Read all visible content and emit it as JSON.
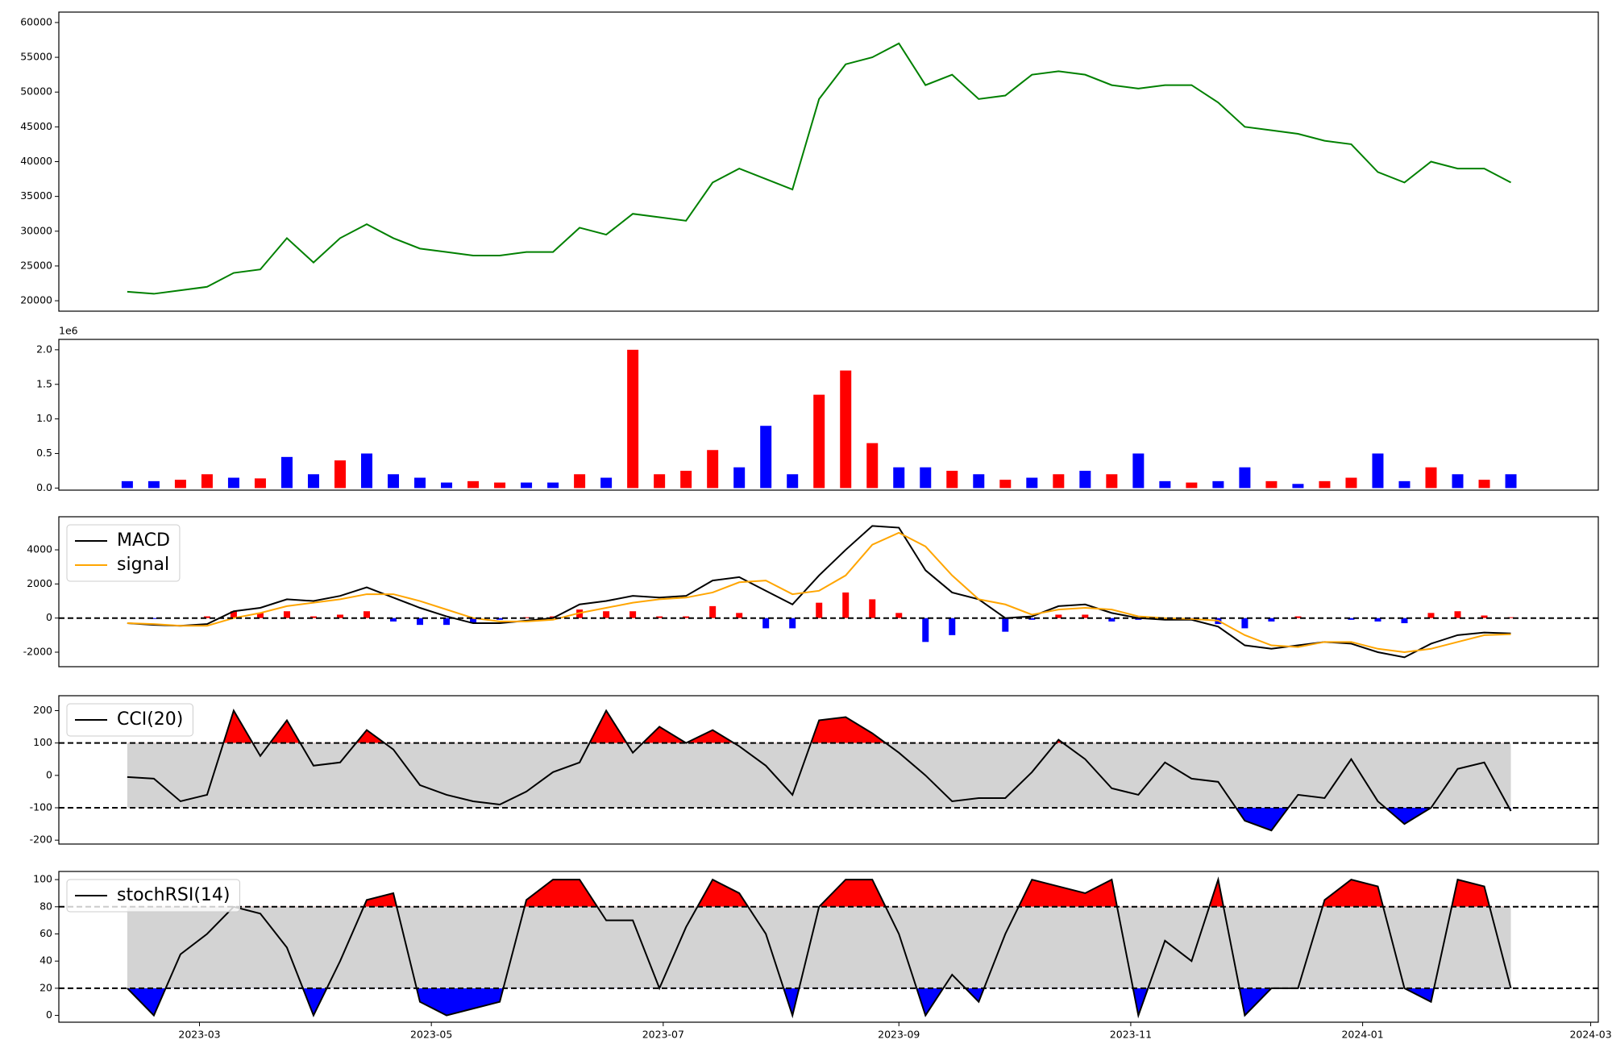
{
  "chart_data": [
    {
      "type": "line",
      "x": [
        -19,
        -12,
        -5,
        2,
        9,
        16,
        23,
        30,
        37,
        44,
        51,
        58,
        65,
        72,
        79,
        86,
        93,
        100,
        107,
        114,
        121,
        128,
        135,
        142,
        149,
        156,
        163,
        170,
        177,
        184,
        191,
        198,
        205,
        212,
        219,
        226,
        233,
        240,
        247,
        254,
        261,
        268,
        275,
        282,
        289,
        296,
        303,
        310,
        317,
        324,
        331,
        338,
        345
      ],
      "series": [
        {
          "color": "#008000",
          "values": [
            21300,
            21000,
            21500,
            22000,
            24000,
            24500,
            29000,
            25500,
            29000,
            31000,
            29000,
            27500,
            27000,
            26500,
            26500,
            27000,
            27000,
            30500,
            29500,
            32500,
            32000,
            31500,
            37000,
            39000,
            37500,
            36000,
            49000,
            54000,
            55000,
            57000,
            51000,
            52500,
            49000,
            49500,
            52500,
            53000,
            52500,
            51000,
            50500,
            51000,
            51000,
            48500,
            45000,
            44500,
            44000,
            43000,
            42500,
            38500,
            37000,
            40000,
            39000,
            39000,
            37000
          ]
        }
      ],
      "xlim": [
        -37,
        368
      ],
      "ylim": [
        18500,
        61500
      ],
      "yticks": [
        20000,
        25000,
        30000,
        35000,
        40000,
        45000,
        50000,
        55000,
        60000
      ]
    },
    {
      "type": "bar",
      "x": [
        -19,
        -12,
        -5,
        2,
        9,
        16,
        23,
        30,
        37,
        44,
        51,
        58,
        65,
        72,
        79,
        86,
        93,
        100,
        107,
        114,
        121,
        128,
        135,
        142,
        149,
        156,
        163,
        170,
        177,
        184,
        191,
        198,
        205,
        212,
        219,
        226,
        233,
        240,
        247,
        254,
        261,
        268,
        275,
        282,
        289,
        296,
        303,
        310,
        317,
        324,
        331,
        338,
        345
      ],
      "values": [
        0.1,
        0.1,
        0.12,
        0.2,
        0.15,
        0.14,
        0.45,
        0.2,
        0.4,
        0.5,
        0.2,
        0.15,
        0.08,
        0.1,
        0.08,
        0.08,
        0.08,
        0.2,
        0.15,
        2.0,
        0.2,
        0.25,
        0.55,
        0.3,
        0.9,
        0.2,
        1.35,
        1.7,
        0.65,
        0.3,
        0.3,
        0.25,
        0.2,
        0.12,
        0.15,
        0.2,
        0.25,
        0.2,
        0.5,
        0.1,
        0.08,
        0.1,
        0.3,
        0.1,
        0.06,
        0.1,
        0.15,
        0.5,
        0.1,
        0.3,
        0.2,
        0.12,
        0.2
      ],
      "colors": [
        "blue",
        "blue",
        "red",
        "red",
        "blue",
        "red",
        "blue",
        "blue",
        "red",
        "blue",
        "blue",
        "blue",
        "blue",
        "red",
        "red",
        "blue",
        "blue",
        "red",
        "blue",
        "red",
        "red",
        "red",
        "red",
        "blue",
        "blue",
        "blue",
        "red",
        "red",
        "red",
        "blue",
        "blue",
        "red",
        "blue",
        "red",
        "blue",
        "red",
        "blue",
        "red",
        "blue",
        "blue",
        "red",
        "blue",
        "blue",
        "red",
        "blue",
        "red",
        "red",
        "blue",
        "blue",
        "red",
        "blue",
        "red",
        "blue"
      ],
      "offset_label": "1e6",
      "xlim": [
        -37,
        368
      ],
      "ylim": [
        -0.03,
        2.15
      ],
      "yticks": [
        {
          "value": 0,
          "label": "0.0"
        },
        0.5,
        {
          "value": 1,
          "label": "1.0"
        },
        1.5,
        {
          "value": 2,
          "label": "2.0"
        }
      ]
    },
    {
      "type": "line",
      "x": [
        -19,
        -12,
        -5,
        2,
        9,
        16,
        23,
        30,
        37,
        44,
        51,
        58,
        65,
        72,
        79,
        86,
        93,
        100,
        107,
        114,
        121,
        128,
        135,
        142,
        149,
        156,
        163,
        170,
        177,
        184,
        191,
        198,
        205,
        212,
        219,
        226,
        233,
        240,
        247,
        254,
        261,
        268,
        275,
        282,
        289,
        296,
        303,
        310,
        317,
        324,
        331,
        338,
        345
      ],
      "series": [
        {
          "name": "MACD",
          "color": "#000000",
          "values": [
            -300,
            -400,
            -450,
            -350,
            400,
            600,
            1100,
            1000,
            1300,
            1800,
            1200,
            600,
            100,
            -300,
            -300,
            -150,
            0,
            800,
            1000,
            1300,
            1200,
            1300,
            2200,
            2400,
            1600,
            800,
            2500,
            4000,
            5400,
            5300,
            2800,
            1500,
            1100,
            0,
            100,
            700,
            800,
            300,
            0,
            -100,
            -100,
            -500,
            -1600,
            -1800,
            -1600,
            -1400,
            -1500,
            -2000,
            -2300,
            -1500,
            -1000,
            -850,
            -900
          ]
        },
        {
          "name": "signal",
          "color": "#ffa500",
          "values": [
            -300,
            -350,
            -450,
            -450,
            0,
            300,
            700,
            900,
            1100,
            1400,
            1400,
            1000,
            500,
            0,
            -200,
            -200,
            -100,
            300,
            600,
            900,
            1100,
            1200,
            1500,
            2100,
            2200,
            1400,
            1600,
            2500,
            4300,
            5000,
            4200,
            2500,
            1100,
            800,
            200,
            500,
            600,
            500,
            100,
            0,
            -50,
            -150,
            -1000,
            -1600,
            -1700,
            -1400,
            -1400,
            -1800,
            -2000,
            -1800,
            -1400,
            -1000,
            -950
          ]
        }
      ],
      "histogram": {
        "values": [
          0,
          -50,
          0,
          100,
          400,
          300,
          400,
          100,
          200,
          400,
          -200,
          -400,
          -400,
          -300,
          -100,
          50,
          100,
          500,
          400,
          400,
          100,
          100,
          700,
          300,
          -600,
          -600,
          900,
          1500,
          1100,
          300,
          -1400,
          -1000,
          0,
          -800,
          -100,
          200,
          200,
          -200,
          -100,
          -100,
          -50,
          -350,
          -600,
          -200,
          100,
          0,
          -100,
          -200,
          -300,
          300,
          400,
          150,
          50
        ],
        "up_color": "#ff0000",
        "down_color": "#0000ff"
      },
      "levels": [
        0
      ],
      "xlim": [
        -37,
        368
      ],
      "ylim": [
        -2850,
        5940
      ],
      "yticks": [
        -2000,
        0,
        2000,
        4000
      ]
    },
    {
      "type": "line",
      "x": [
        -19,
        -12,
        -5,
        2,
        9,
        16,
        23,
        30,
        37,
        44,
        51,
        58,
        65,
        72,
        79,
        86,
        93,
        100,
        107,
        114,
        121,
        128,
        135,
        142,
        149,
        156,
        163,
        170,
        177,
        184,
        191,
        198,
        205,
        212,
        219,
        226,
        233,
        240,
        247,
        254,
        261,
        268,
        275,
        282,
        289,
        296,
        303,
        310,
        317,
        324,
        331,
        338,
        345
      ],
      "series": [
        {
          "name": "CCI(20)",
          "color": "#000000",
          "values": [
            -5,
            -10,
            -80,
            -60,
            200,
            60,
            170,
            30,
            40,
            140,
            80,
            -30,
            -60,
            -80,
            -90,
            -50,
            10,
            40,
            200,
            70,
            150,
            100,
            140,
            90,
            30,
            -60,
            170,
            180,
            130,
            70,
            0,
            -80,
            -70,
            -70,
            10,
            110,
            50,
            -40,
            -60,
            40,
            -10,
            -20,
            -140,
            -170,
            -60,
            -70,
            50,
            -80,
            -150,
            -100,
            20,
            40,
            -110
          ]
        }
      ],
      "levels": [
        -100,
        100
      ],
      "band_color": "#d3d3d3",
      "above_color": "#ff0000",
      "below_color": "#0000ff",
      "xlim": [
        -37,
        368
      ],
      "ylim": [
        -212,
        246
      ],
      "yticks": [
        -200,
        -100,
        0,
        100,
        200
      ]
    },
    {
      "type": "line",
      "x": [
        -19,
        -12,
        -5,
        2,
        9,
        16,
        23,
        30,
        37,
        44,
        51,
        58,
        65,
        72,
        79,
        86,
        93,
        100,
        107,
        114,
        121,
        128,
        135,
        142,
        149,
        156,
        163,
        170,
        177,
        184,
        191,
        198,
        205,
        212,
        219,
        226,
        233,
        240,
        247,
        254,
        261,
        268,
        275,
        282,
        289,
        296,
        303,
        310,
        317,
        324,
        331,
        338,
        345
      ],
      "series": [
        {
          "name": "stochRSI(14)",
          "color": "#000000",
          "values": [
            20,
            0,
            45,
            60,
            80,
            75,
            50,
            0,
            40,
            85,
            90,
            10,
            0,
            5,
            10,
            85,
            100,
            100,
            70,
            70,
            20,
            65,
            100,
            90,
            60,
            0,
            80,
            100,
            100,
            60,
            0,
            30,
            10,
            60,
            100,
            95,
            90,
            100,
            0,
            55,
            40,
            100,
            0,
            20,
            20,
            85,
            100,
            95,
            20,
            10,
            100,
            95,
            20
          ]
        }
      ],
      "levels": [
        20,
        80
      ],
      "band_color": "#d3d3d3",
      "above_color": "#ff0000",
      "below_color": "#0000ff",
      "xlim": [
        -37,
        368
      ],
      "ylim": [
        -5,
        106
      ],
      "yticks": [
        0,
        20,
        40,
        60,
        80,
        100
      ],
      "xticks": [
        {
          "value": 0,
          "label": "2023-03"
        },
        {
          "value": 61,
          "label": "2023-05"
        },
        {
          "value": 122,
          "label": "2023-07"
        },
        {
          "value": 184,
          "label": "2023-09"
        },
        {
          "value": 245,
          "label": "2023-11"
        },
        {
          "value": 306,
          "label": "2024-01"
        },
        {
          "value": 366,
          "label": "2024-03"
        }
      ]
    }
  ]
}
